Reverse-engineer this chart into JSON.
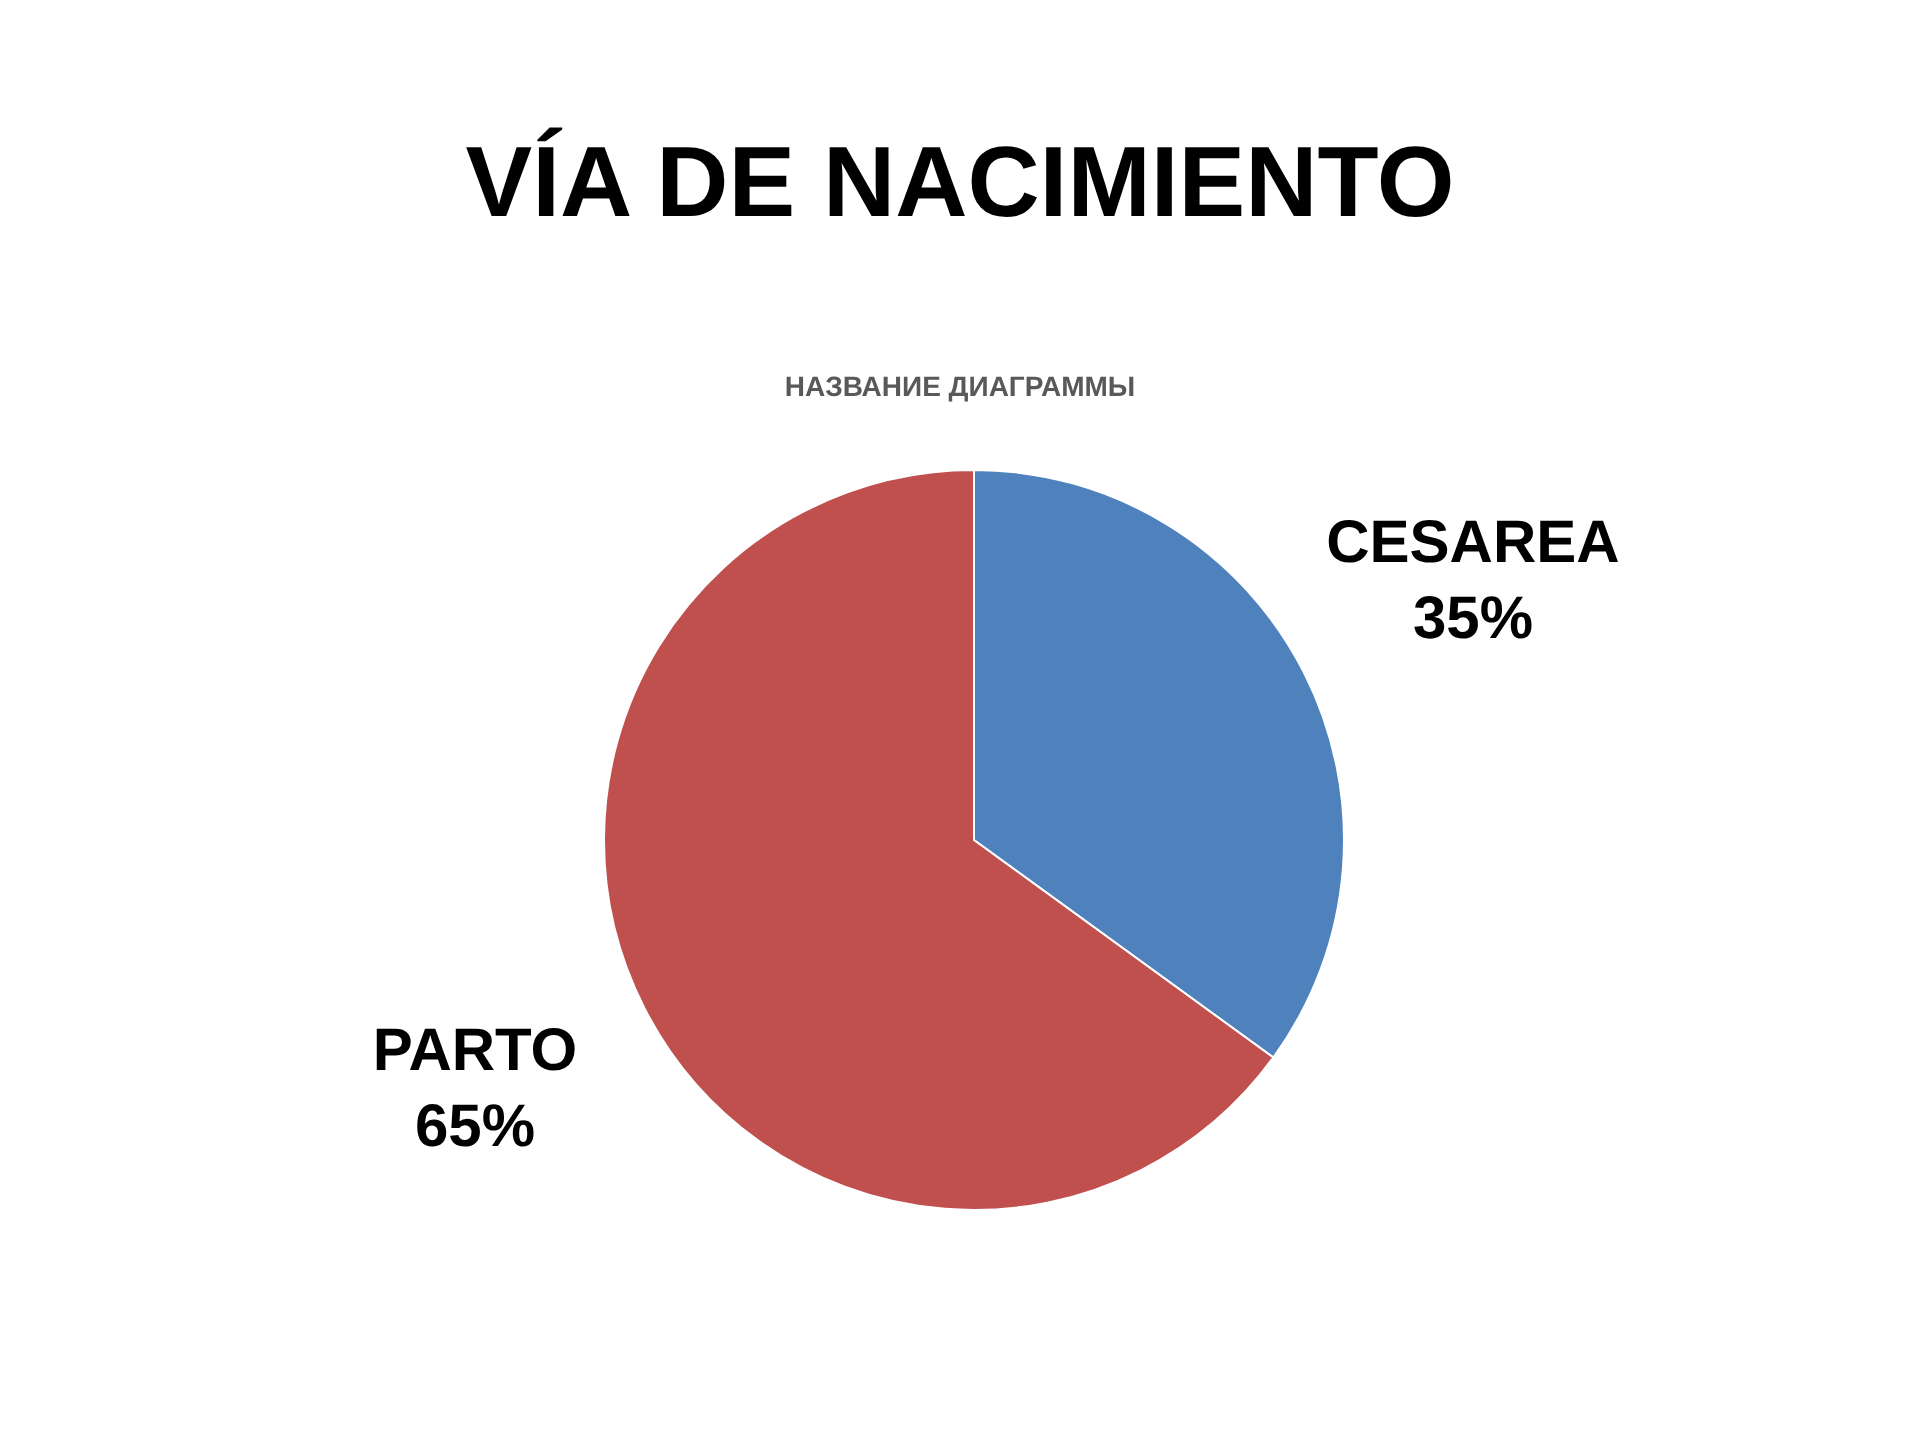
{
  "chart_data": {
    "type": "pie",
    "title": "VÍA DE NACIMIENTO",
    "subtitle": "НАЗВАНИЕ ДИАГРАММЫ",
    "categories": [
      "CESAREA",
      "PARTO"
    ],
    "values": [
      35,
      65
    ],
    "colors": [
      "#4f81bd",
      "#c0504d"
    ],
    "value_labels": [
      "35%",
      "65%"
    ],
    "legend": false
  }
}
